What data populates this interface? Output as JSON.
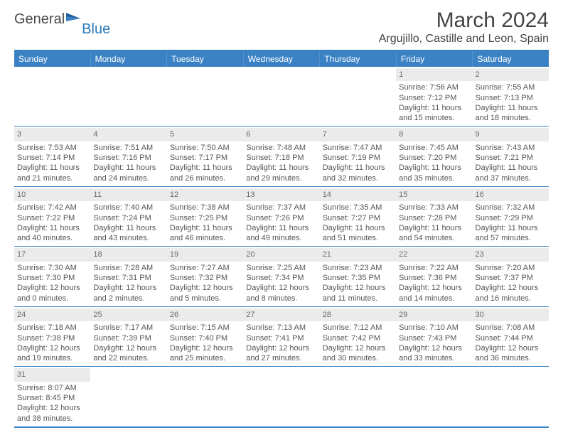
{
  "logo": {
    "text1": "General",
    "text2": "Blue"
  },
  "title": "March 2024",
  "location": "Argujillo, Castille and Leon, Spain",
  "colors": {
    "accent": "#3b82c4",
    "daynum_bg": "#ebebeb",
    "text": "#555555"
  },
  "daysOfWeek": [
    "Sunday",
    "Monday",
    "Tuesday",
    "Wednesday",
    "Thursday",
    "Friday",
    "Saturday"
  ],
  "weeks": [
    [
      null,
      null,
      null,
      null,
      null,
      {
        "day": "1",
        "sunrise": "Sunrise: 7:56 AM",
        "sunset": "Sunset: 7:12 PM",
        "daylight": "Daylight: 11 hours and 15 minutes."
      },
      {
        "day": "2",
        "sunrise": "Sunrise: 7:55 AM",
        "sunset": "Sunset: 7:13 PM",
        "daylight": "Daylight: 11 hours and 18 minutes."
      }
    ],
    [
      {
        "day": "3",
        "sunrise": "Sunrise: 7:53 AM",
        "sunset": "Sunset: 7:14 PM",
        "daylight": "Daylight: 11 hours and 21 minutes."
      },
      {
        "day": "4",
        "sunrise": "Sunrise: 7:51 AM",
        "sunset": "Sunset: 7:16 PM",
        "daylight": "Daylight: 11 hours and 24 minutes."
      },
      {
        "day": "5",
        "sunrise": "Sunrise: 7:50 AM",
        "sunset": "Sunset: 7:17 PM",
        "daylight": "Daylight: 11 hours and 26 minutes."
      },
      {
        "day": "6",
        "sunrise": "Sunrise: 7:48 AM",
        "sunset": "Sunset: 7:18 PM",
        "daylight": "Daylight: 11 hours and 29 minutes."
      },
      {
        "day": "7",
        "sunrise": "Sunrise: 7:47 AM",
        "sunset": "Sunset: 7:19 PM",
        "daylight": "Daylight: 11 hours and 32 minutes."
      },
      {
        "day": "8",
        "sunrise": "Sunrise: 7:45 AM",
        "sunset": "Sunset: 7:20 PM",
        "daylight": "Daylight: 11 hours and 35 minutes."
      },
      {
        "day": "9",
        "sunrise": "Sunrise: 7:43 AM",
        "sunset": "Sunset: 7:21 PM",
        "daylight": "Daylight: 11 hours and 37 minutes."
      }
    ],
    [
      {
        "day": "10",
        "sunrise": "Sunrise: 7:42 AM",
        "sunset": "Sunset: 7:22 PM",
        "daylight": "Daylight: 11 hours and 40 minutes."
      },
      {
        "day": "11",
        "sunrise": "Sunrise: 7:40 AM",
        "sunset": "Sunset: 7:24 PM",
        "daylight": "Daylight: 11 hours and 43 minutes."
      },
      {
        "day": "12",
        "sunrise": "Sunrise: 7:38 AM",
        "sunset": "Sunset: 7:25 PM",
        "daylight": "Daylight: 11 hours and 46 minutes."
      },
      {
        "day": "13",
        "sunrise": "Sunrise: 7:37 AM",
        "sunset": "Sunset: 7:26 PM",
        "daylight": "Daylight: 11 hours and 49 minutes."
      },
      {
        "day": "14",
        "sunrise": "Sunrise: 7:35 AM",
        "sunset": "Sunset: 7:27 PM",
        "daylight": "Daylight: 11 hours and 51 minutes."
      },
      {
        "day": "15",
        "sunrise": "Sunrise: 7:33 AM",
        "sunset": "Sunset: 7:28 PM",
        "daylight": "Daylight: 11 hours and 54 minutes."
      },
      {
        "day": "16",
        "sunrise": "Sunrise: 7:32 AM",
        "sunset": "Sunset: 7:29 PM",
        "daylight": "Daylight: 11 hours and 57 minutes."
      }
    ],
    [
      {
        "day": "17",
        "sunrise": "Sunrise: 7:30 AM",
        "sunset": "Sunset: 7:30 PM",
        "daylight": "Daylight: 12 hours and 0 minutes."
      },
      {
        "day": "18",
        "sunrise": "Sunrise: 7:28 AM",
        "sunset": "Sunset: 7:31 PM",
        "daylight": "Daylight: 12 hours and 2 minutes."
      },
      {
        "day": "19",
        "sunrise": "Sunrise: 7:27 AM",
        "sunset": "Sunset: 7:32 PM",
        "daylight": "Daylight: 12 hours and 5 minutes."
      },
      {
        "day": "20",
        "sunrise": "Sunrise: 7:25 AM",
        "sunset": "Sunset: 7:34 PM",
        "daylight": "Daylight: 12 hours and 8 minutes."
      },
      {
        "day": "21",
        "sunrise": "Sunrise: 7:23 AM",
        "sunset": "Sunset: 7:35 PM",
        "daylight": "Daylight: 12 hours and 11 minutes."
      },
      {
        "day": "22",
        "sunrise": "Sunrise: 7:22 AM",
        "sunset": "Sunset: 7:36 PM",
        "daylight": "Daylight: 12 hours and 14 minutes."
      },
      {
        "day": "23",
        "sunrise": "Sunrise: 7:20 AM",
        "sunset": "Sunset: 7:37 PM",
        "daylight": "Daylight: 12 hours and 16 minutes."
      }
    ],
    [
      {
        "day": "24",
        "sunrise": "Sunrise: 7:18 AM",
        "sunset": "Sunset: 7:38 PM",
        "daylight": "Daylight: 12 hours and 19 minutes."
      },
      {
        "day": "25",
        "sunrise": "Sunrise: 7:17 AM",
        "sunset": "Sunset: 7:39 PM",
        "daylight": "Daylight: 12 hours and 22 minutes."
      },
      {
        "day": "26",
        "sunrise": "Sunrise: 7:15 AM",
        "sunset": "Sunset: 7:40 PM",
        "daylight": "Daylight: 12 hours and 25 minutes."
      },
      {
        "day": "27",
        "sunrise": "Sunrise: 7:13 AM",
        "sunset": "Sunset: 7:41 PM",
        "daylight": "Daylight: 12 hours and 27 minutes."
      },
      {
        "day": "28",
        "sunrise": "Sunrise: 7:12 AM",
        "sunset": "Sunset: 7:42 PM",
        "daylight": "Daylight: 12 hours and 30 minutes."
      },
      {
        "day": "29",
        "sunrise": "Sunrise: 7:10 AM",
        "sunset": "Sunset: 7:43 PM",
        "daylight": "Daylight: 12 hours and 33 minutes."
      },
      {
        "day": "30",
        "sunrise": "Sunrise: 7:08 AM",
        "sunset": "Sunset: 7:44 PM",
        "daylight": "Daylight: 12 hours and 36 minutes."
      }
    ],
    [
      {
        "day": "31",
        "sunrise": "Sunrise: 8:07 AM",
        "sunset": "Sunset: 8:45 PM",
        "daylight": "Daylight: 12 hours and 38 minutes."
      },
      null,
      null,
      null,
      null,
      null,
      null
    ]
  ]
}
